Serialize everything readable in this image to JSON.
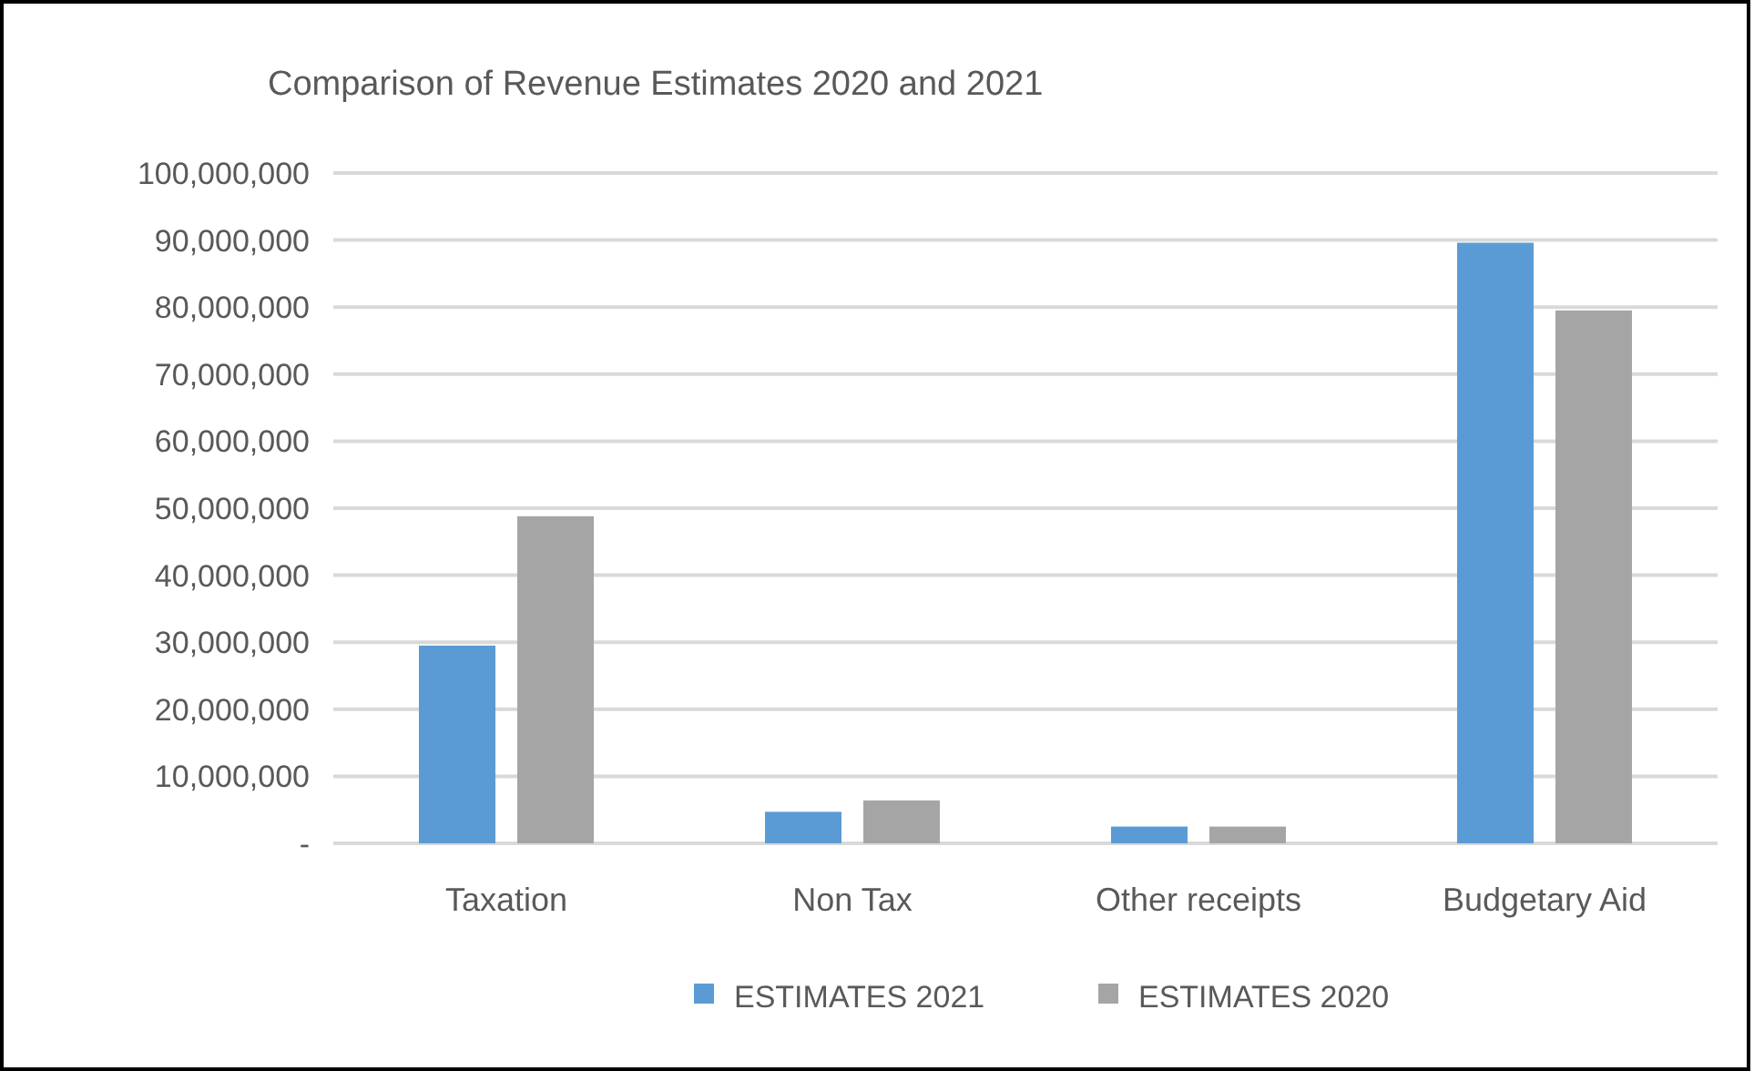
{
  "chart_data": {
    "type": "bar",
    "title": "Comparison of Revenue Estimates 2020 and 2021",
    "categories": [
      "Taxation",
      "Non Tax",
      "Other receipts",
      "Budgetary Aid"
    ],
    "series": [
      {
        "name": "ESTIMATES 2021",
        "color": "#5b9bd5",
        "values": [
          29500000,
          4700000,
          2500000,
          89600000
        ]
      },
      {
        "name": "ESTIMATES 2020",
        "color": "#a5a5a5",
        "values": [
          48800000,
          6400000,
          2500000,
          79500000
        ]
      }
    ],
    "ylim": [
      0,
      100000000
    ],
    "yticks": [
      {
        "value": 0,
        "label": "-"
      },
      {
        "value": 10000000,
        "label": "10,000,000"
      },
      {
        "value": 20000000,
        "label": "20,000,000"
      },
      {
        "value": 30000000,
        "label": "30,000,000"
      },
      {
        "value": 40000000,
        "label": "40,000,000"
      },
      {
        "value": 50000000,
        "label": "50,000,000"
      },
      {
        "value": 60000000,
        "label": "60,000,000"
      },
      {
        "value": 70000000,
        "label": "70,000,000"
      },
      {
        "value": 80000000,
        "label": "80,000,000"
      },
      {
        "value": 90000000,
        "label": "90,000,000"
      },
      {
        "value": 100000000,
        "label": "100,000,000"
      }
    ],
    "grid": "y",
    "legend": "bottom"
  }
}
